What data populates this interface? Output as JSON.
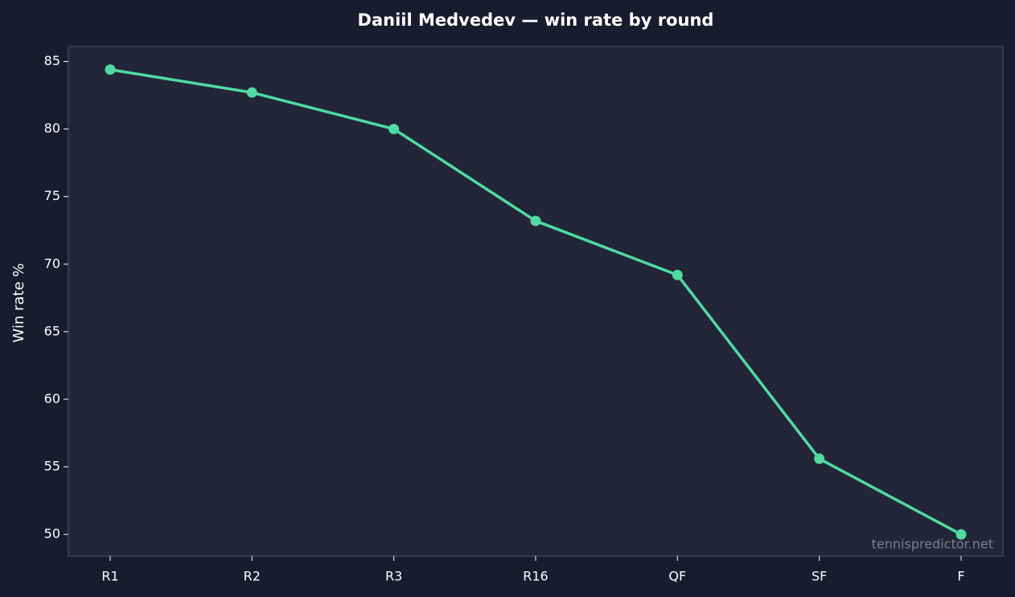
{
  "chart_data": {
    "type": "line",
    "title": "Daniil Medvedev — win rate by round",
    "y_label": "Win rate %",
    "watermark": "tennispredictor.net",
    "categories": [
      "R1",
      "R2",
      "R3",
      "R16",
      "QF",
      "SF",
      "F"
    ],
    "series": [
      {
        "name": "Win rate",
        "color": "#4fdba2",
        "values": [
          84.4,
          82.7,
          80.0,
          73.2,
          69.2,
          55.6,
          50.0
        ]
      }
    ],
    "ylim": [
      48.4,
      86.1
    ],
    "yticks": [
      50,
      55,
      60,
      65,
      70,
      75,
      80,
      85
    ],
    "grid": false
  }
}
